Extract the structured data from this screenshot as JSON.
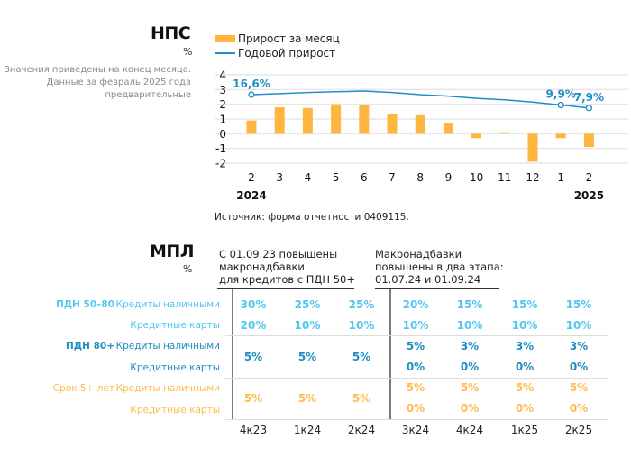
{
  "nps": {
    "title": "НПС",
    "unit": "%",
    "note": [
      "Значения приведены на конец месяца.",
      "Данные за февраль 2025 года",
      "предварительные"
    ],
    "source": "Источник: форма отчетности 0409115."
  },
  "colors": {
    "bar": "#ffb640",
    "line": "#1d8fc5",
    "light_blue": "#55c6ef",
    "dark_blue": "#1f8dc2",
    "gold": "#ffbb4d",
    "grid": "#e6e6e6"
  },
  "chart_data": {
    "type": "bar",
    "title": "НПС",
    "ylabel": "%",
    "xlabel": "",
    "ylim": [
      -2,
      4
    ],
    "yticks": [
      "4",
      "3",
      "2",
      "1",
      "0",
      "-1",
      "-2"
    ],
    "ytick_values": [
      4,
      3,
      2,
      1,
      0,
      -1,
      -2
    ],
    "grid": true,
    "legend_position": "top-left",
    "categories": [
      "2",
      "3",
      "4",
      "5",
      "6",
      "7",
      "8",
      "9",
      "10",
      "11",
      "12",
      "1",
      "2"
    ],
    "year_labels": [
      {
        "index": 0,
        "label": "2024"
      },
      {
        "index": 12,
        "label": "2025"
      }
    ],
    "series": [
      {
        "name": "Прирост за месяц",
        "type": "bar",
        "values": [
          0.9,
          1.8,
          1.75,
          2.0,
          1.95,
          1.35,
          1.25,
          0.7,
          -0.3,
          0.1,
          -1.9,
          -0.3,
          -0.9
        ]
      },
      {
        "name": "Годовой прирост",
        "type": "line",
        "values": [
          2.65,
          2.72,
          2.8,
          2.85,
          2.9,
          2.8,
          2.65,
          2.55,
          2.4,
          2.3,
          2.15,
          1.95,
          1.75
        ],
        "annotations": [
          {
            "index": 0,
            "label": "16,6%"
          },
          {
            "index": 11,
            "label": "9,9%"
          },
          {
            "index": 12,
            "label": "7,9%"
          }
        ]
      }
    ]
  },
  "mpl": {
    "title": "МПЛ",
    "unit": "%",
    "header_left": [
      "С 01.09.23 повышены",
      "макронадбавки",
      "для кредитов с ПДН 50+"
    ],
    "header_right": [
      "Макронадбавки",
      "повышены в два этапа:",
      "01.07.24 и 01.09.24"
    ],
    "quarters": [
      "4к23",
      "1к24",
      "2к24",
      "3к24",
      "4к24",
      "1к25",
      "2к25"
    ],
    "groups": [
      {
        "name": "ПДН 50–80",
        "rows": [
          {
            "label": "Кредиты наличными",
            "values": [
              "30%",
              "25%",
              "25%",
              "20%",
              "15%",
              "15%",
              "15%"
            ]
          },
          {
            "label": "Кредитные карты",
            "values": [
              "20%",
              "10%",
              "10%",
              "10%",
              "10%",
              "10%",
              "10%"
            ]
          }
        ]
      },
      {
        "name": "ПДН 80+",
        "merged_left": [
          "5%",
          "5%",
          "5%"
        ],
        "rows": [
          {
            "label": "Кредиты наличными",
            "values": [
              "5%",
              "3%",
              "3%",
              "3%"
            ]
          },
          {
            "label": "Кредитные карты",
            "values": [
              "0%",
              "0%",
              "0%",
              "0%"
            ]
          }
        ]
      },
      {
        "name": "Срок 5+ лет",
        "merged_left": [
          "5%",
          "5%",
          "5%"
        ],
        "rows": [
          {
            "label": "Кредиты наличными",
            "values": [
              "5%",
              "5%",
              "5%",
              "5%"
            ]
          },
          {
            "label": "Кредитные карты",
            "values": [
              "0%",
              "0%",
              "0%",
              "0%"
            ]
          }
        ]
      }
    ]
  }
}
